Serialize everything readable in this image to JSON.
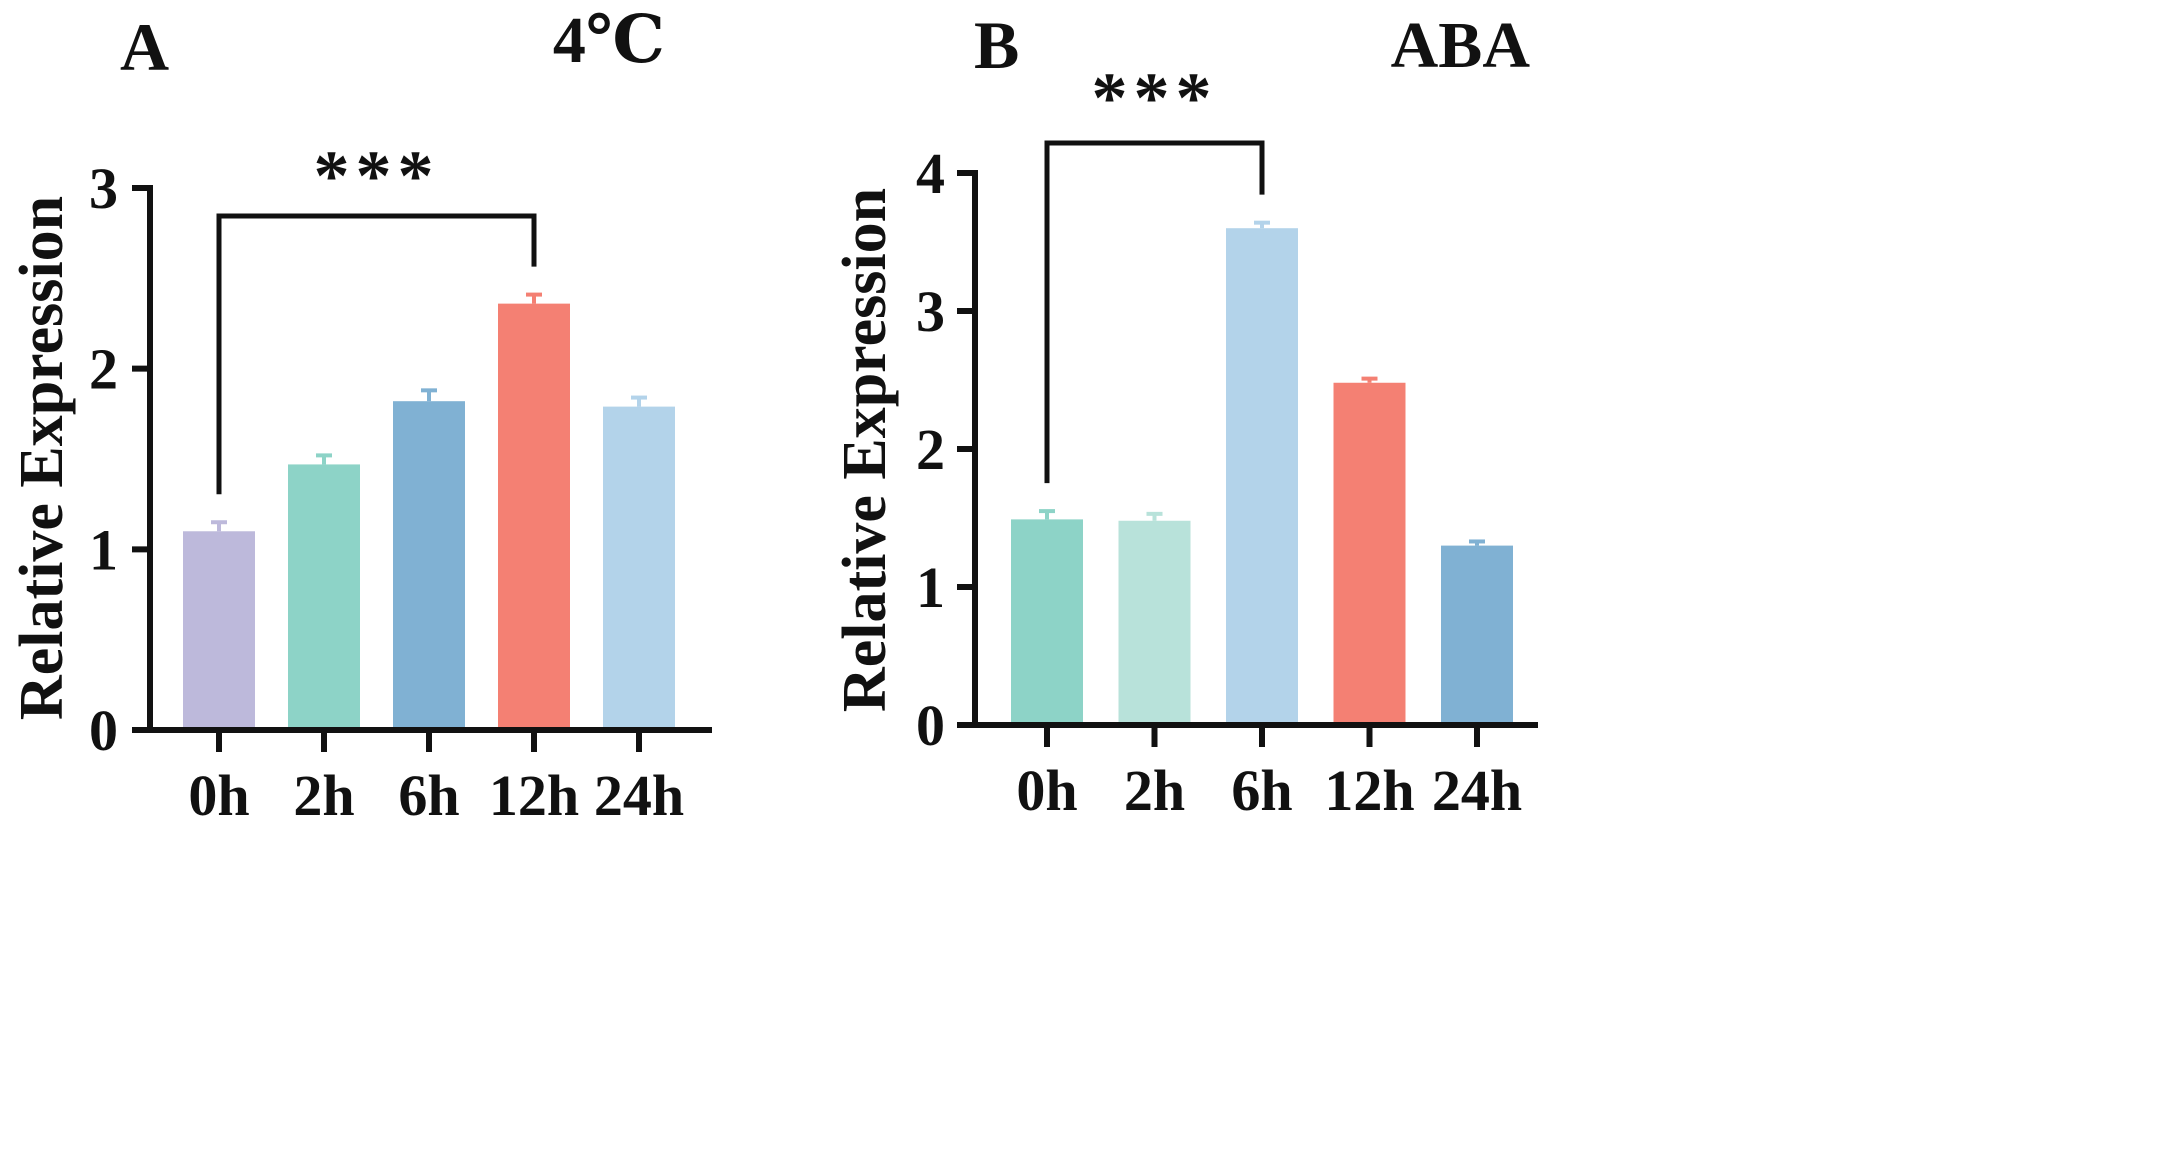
{
  "chart_data": [
    {
      "type": "bar",
      "panel": "A",
      "title": "4℃",
      "ylabel": "Relative Expression",
      "xlabel": "",
      "categories": [
        "0h",
        "2h",
        "6h",
        "12h",
        "24h"
      ],
      "values": [
        1.1,
        1.47,
        1.82,
        2.36,
        1.79
      ],
      "errors": [
        0.05,
        0.05,
        0.06,
        0.05,
        0.05
      ],
      "colors": [
        "#BDB9DB",
        "#8DD3C7",
        "#80B1D3",
        "#F48073",
        "#B3D3EA"
      ],
      "ylim": [
        0,
        3
      ],
      "yticks": [
        0,
        1,
        2,
        3
      ],
      "ytick_labels": [
        "0",
        "1",
        "2",
        "3"
      ],
      "grid": false,
      "significance": {
        "from": "0h",
        "to": "12h",
        "label": "***"
      }
    },
    {
      "type": "bar",
      "panel": "B",
      "title": "ABA",
      "ylabel": "Relative Expression",
      "xlabel": "",
      "categories": [
        "0h",
        "2h",
        "6h",
        "12h",
        "24h"
      ],
      "values": [
        1.49,
        1.48,
        3.6,
        2.48,
        1.3
      ],
      "errors": [
        0.06,
        0.05,
        0.04,
        0.03,
        0.03
      ],
      "colors": [
        "#8DD3C7",
        "#B8E2DA",
        "#B3D3EA",
        "#F48073",
        "#80B1D3"
      ],
      "ylim": [
        0,
        4
      ],
      "yticks": [
        0,
        1,
        2,
        3,
        4
      ],
      "ytick_labels": [
        "0",
        "1",
        "2",
        "3",
        "4"
      ],
      "grid": false,
      "significance": {
        "from": "0h",
        "to": "6h",
        "label": "***"
      }
    }
  ]
}
